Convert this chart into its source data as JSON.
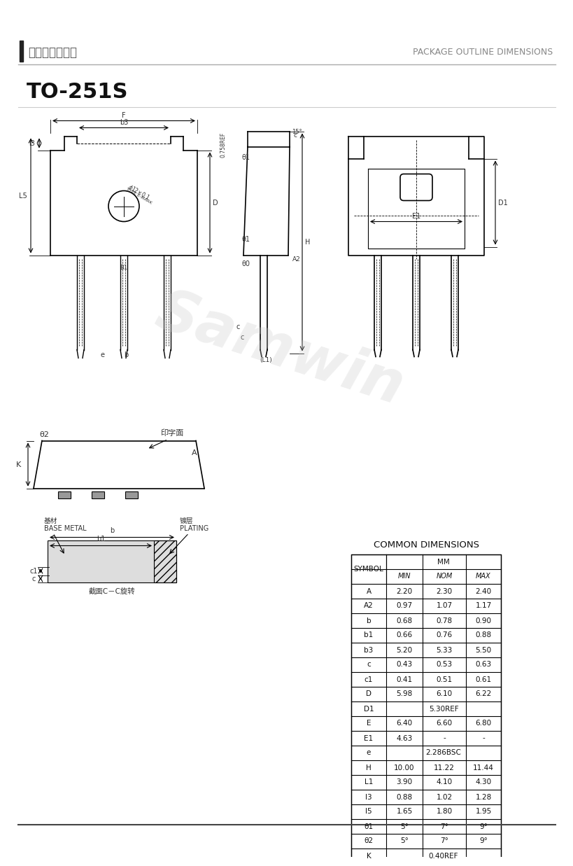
{
  "title": "TO-251S",
  "header_chinese": "产品封装尺寸图",
  "header_english": "PACKAGE OUTLINE DIMENSIONS",
  "watermark": "Samwin",
  "table_title": "COMMON DIMENSIONS",
  "table_headers": [
    "SYMBOL",
    "MIN",
    "NOM",
    "MAX"
  ],
  "table_subheader": "MM",
  "table_data": [
    [
      "A",
      "2.20",
      "2.30",
      "2.40"
    ],
    [
      "A2",
      "0.97",
      "1.07",
      "1.17"
    ],
    [
      "b",
      "0.68",
      "0.78",
      "0.90"
    ],
    [
      "b1",
      "0.66",
      "0.76",
      "0.88"
    ],
    [
      "b3",
      "5.20",
      "5.33",
      "5.50"
    ],
    [
      "c",
      "0.43",
      "0.53",
      "0.63"
    ],
    [
      "c1",
      "0.41",
      "0.51",
      "0.61"
    ],
    [
      "D",
      "5.98",
      "6.10",
      "6.22"
    ],
    [
      "D1",
      "",
      "5.30REF",
      ""
    ],
    [
      "E",
      "6.40",
      "6.60",
      "6.80"
    ],
    [
      "E1",
      "4.63",
      "-",
      "-"
    ],
    [
      "e",
      "",
      "2.286BSC",
      ""
    ],
    [
      "H",
      "10.00",
      "11.22",
      "11.44"
    ],
    [
      "L1",
      "3.90",
      "4.10",
      "4.30"
    ],
    [
      "l3",
      "0.88",
      "1.02",
      "1.28"
    ],
    [
      "l5",
      "1.65",
      "1.80",
      "1.95"
    ],
    [
      "θ1",
      "5°",
      "7°",
      "9°"
    ],
    [
      "θ2",
      "5°",
      "7°",
      "9°"
    ],
    [
      "K",
      "",
      "0.40REF",
      ""
    ]
  ],
  "bg_color": "#ffffff",
  "line_color": "#000000",
  "text_color": "#333333",
  "header_bar_color": "#444444"
}
